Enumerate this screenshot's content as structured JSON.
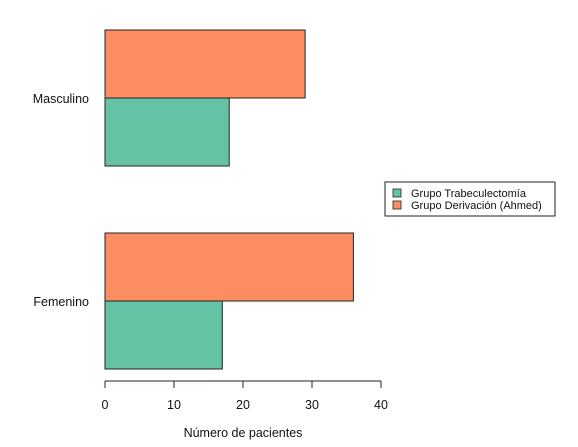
{
  "chart_data": {
    "type": "bar",
    "orientation": "horizontal",
    "title": "",
    "xlabel": "Número de pacientes",
    "ylabel": "",
    "categories": [
      "Masculino",
      "Femenino"
    ],
    "series": [
      {
        "name": "Grupo Trabeculectomía",
        "values": [
          18,
          17
        ],
        "color": "#66c2a5"
      },
      {
        "name": "Grupo Derivación (Ahmed)",
        "values": [
          29,
          36
        ],
        "color": "#fc8d62"
      }
    ],
    "xlim": [
      0,
      40
    ],
    "xticks": [
      0,
      10,
      20,
      30,
      40
    ],
    "grid": false,
    "legend_position": "right"
  }
}
